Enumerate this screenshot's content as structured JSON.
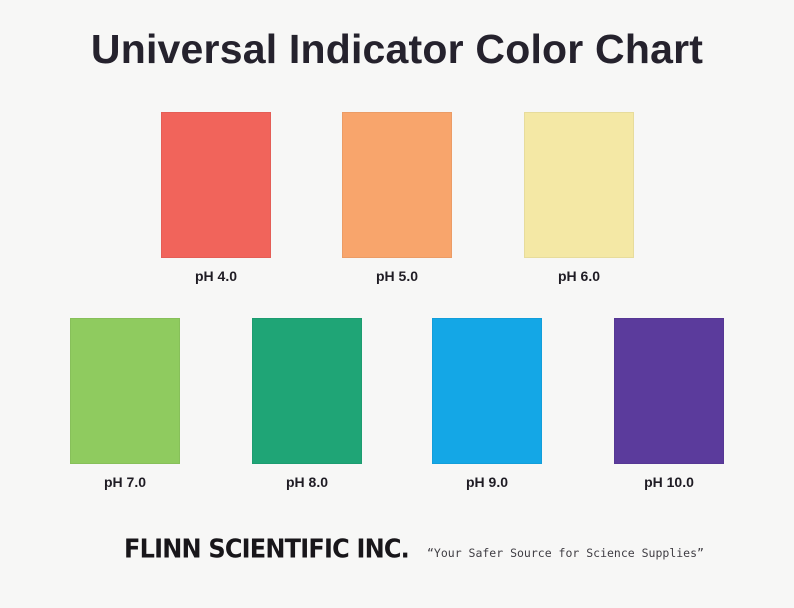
{
  "title": "Universal Indicator Color Chart",
  "swatches": [
    {
      "label": "pH 4.0",
      "color": "#f1645b"
    },
    {
      "label": "pH 5.0",
      "color": "#f8a56c"
    },
    {
      "label": "pH 6.0",
      "color": "#f4e8a5"
    },
    {
      "label": "pH 7.0",
      "color": "#8fcb5f"
    },
    {
      "label": "pH 8.0",
      "color": "#1fa576"
    },
    {
      "label": "pH 9.0",
      "color": "#14a7e6"
    },
    {
      "label": "pH 10.0",
      "color": "#5b3b9c"
    }
  ],
  "footer": {
    "brand": "FLINN SCIENTIFIC INC.",
    "tagline": "“Your Safer Source for Science Supplies”"
  }
}
